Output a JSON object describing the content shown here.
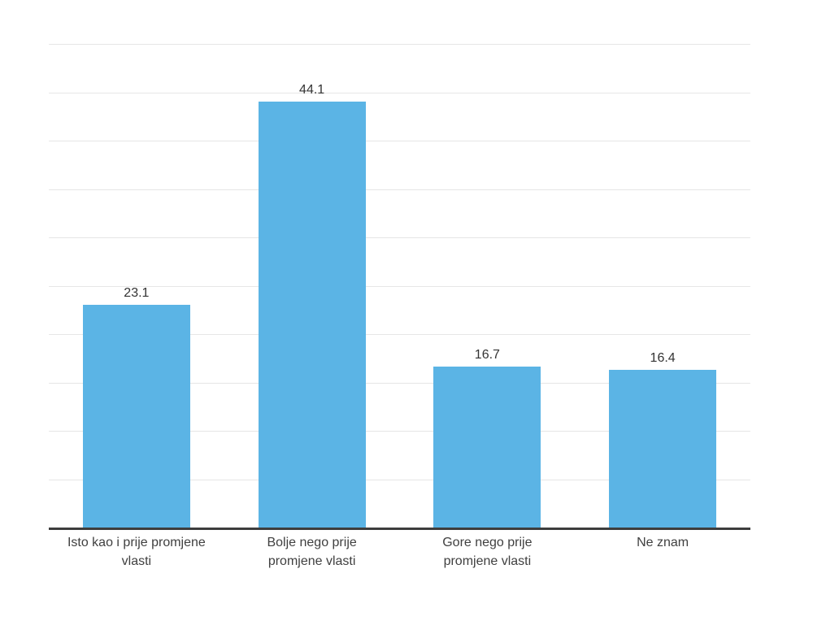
{
  "chart_data": {
    "type": "bar",
    "categories": [
      "Isto kao i prije promjene vlasti",
      "Bolje nego prije promjene vlasti",
      "Gore nego prije promjene vlasti",
      "Ne znam"
    ],
    "category_lines": [
      [
        "Isto kao i prije promjene",
        "vlasti"
      ],
      [
        "Bolje nego prije",
        "promjene vlasti"
      ],
      [
        "Gore nego prije",
        "promjene vlasti"
      ],
      [
        "Ne znam"
      ]
    ],
    "values": [
      23.1,
      44.1,
      16.7,
      16.4
    ],
    "value_labels": [
      "23.1",
      "44.1",
      "16.7",
      "16.4"
    ],
    "xlabel": "",
    "ylabel": "",
    "ylim": [
      0,
      50
    ],
    "gridline_step": 5,
    "grid": true,
    "legend": "none",
    "colors": {
      "bar": "#5bb4e5",
      "gridline": "#e6e6e6",
      "axis_line": "#3d3d3d",
      "label_text": "#404040",
      "value_text": "#333333",
      "background": "#ffffff"
    }
  }
}
